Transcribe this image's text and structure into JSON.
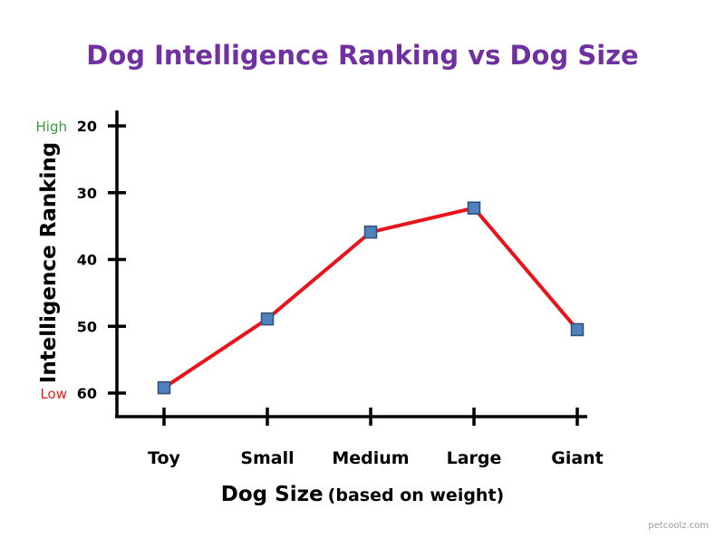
{
  "chart_data": {
    "type": "line",
    "title": "Dog Intelligence Ranking vs Dog Size",
    "xlabel": "Dog Size",
    "xlabel_note": "(based on weight)",
    "ylabel": "Intelligence Ranking",
    "categories": [
      "Toy",
      "Small",
      "Medium",
      "Large",
      "Giant"
    ],
    "y_ticks": [
      20,
      30,
      40,
      50,
      60
    ],
    "ylim": [
      18,
      63
    ],
    "y_inverted": true,
    "y_annotations": [
      {
        "label": "High",
        "at": 20,
        "color": "#3a9a3a"
      },
      {
        "label": "Low",
        "at": 60,
        "color": "#e02020"
      }
    ],
    "series": [
      {
        "values": [
          59.2,
          48.9,
          35.9,
          32.3,
          50.5
        ],
        "line_color": "#e8131b",
        "marker_color": "#4f81bd",
        "marker_edge": "#2e4f7a"
      }
    ],
    "grid": false,
    "legend": "none"
  },
  "watermark": "petcoolz.com"
}
